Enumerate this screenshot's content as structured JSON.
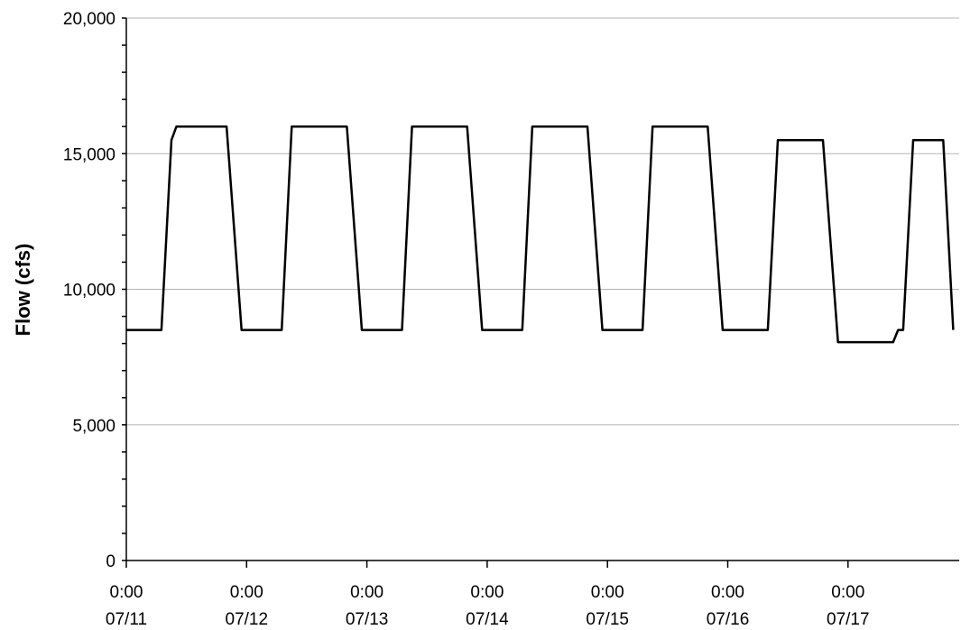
{
  "chart_data": {
    "type": "line",
    "ylabel": "Flow (cfs)",
    "xlabel": "",
    "title": "",
    "ylim": [
      0,
      20000
    ],
    "y_ticks": [
      0,
      5000,
      10000,
      15000,
      20000
    ],
    "y_tick_labels": [
      "0",
      "5,000",
      "10,000",
      "15,000",
      "20,000"
    ],
    "y_minor_step": 1000,
    "grid": "horizontal major",
    "xlim": [
      "07/11 0:00",
      "07/17 21:00"
    ],
    "x_ticks": [
      {
        "x": "07/11 0:00",
        "line1": "0:00",
        "line2": "07/11"
      },
      {
        "x": "07/12 0:00",
        "line1": "0:00",
        "line2": "07/12"
      },
      {
        "x": "07/13 0:00",
        "line1": "0:00",
        "line2": "07/13"
      },
      {
        "x": "07/14 0:00",
        "line1": "0:00",
        "line2": "07/14"
      },
      {
        "x": "07/15 0:00",
        "line1": "0:00",
        "line2": "07/15"
      },
      {
        "x": "07/16 0:00",
        "line1": "0:00",
        "line2": "07/16"
      },
      {
        "x": "07/17 0:00",
        "line1": "0:00",
        "line2": "07/17"
      }
    ],
    "series": [
      {
        "color": "#000000",
        "points": [
          [
            "07/11 0:00",
            8500
          ],
          [
            "07/11 7:00",
            8500
          ],
          [
            "07/11 9:00",
            15500
          ],
          [
            "07/11 10:00",
            16000
          ],
          [
            "07/11 20:00",
            16000
          ],
          [
            "07/11 23:00",
            8500
          ],
          [
            "07/12 7:00",
            8500
          ],
          [
            "07/12 9:00",
            16000
          ],
          [
            "07/12 20:00",
            16000
          ],
          [
            "07/12 23:00",
            8500
          ],
          [
            "07/13 7:00",
            8500
          ],
          [
            "07/13 9:00",
            16000
          ],
          [
            "07/13 20:00",
            16000
          ],
          [
            "07/13 23:00",
            8500
          ],
          [
            "07/14 7:00",
            8500
          ],
          [
            "07/14 9:00",
            16000
          ],
          [
            "07/14 20:00",
            16000
          ],
          [
            "07/14 23:00",
            8500
          ],
          [
            "07/15 7:00",
            8500
          ],
          [
            "07/15 9:00",
            16000
          ],
          [
            "07/15 20:00",
            16000
          ],
          [
            "07/15 23:00",
            8500
          ],
          [
            "07/16 8:00",
            8500
          ],
          [
            "07/16 10:00",
            15500
          ],
          [
            "07/16 19:00",
            15500
          ],
          [
            "07/16 22:00",
            8050
          ],
          [
            "07/17 9:00",
            8050
          ],
          [
            "07/17 10:00",
            8500
          ],
          [
            "07/17 11:00",
            8500
          ],
          [
            "07/17 13:00",
            15500
          ],
          [
            "07/17 19:00",
            15500
          ],
          [
            "07/17 21:00",
            8500
          ]
        ]
      }
    ]
  }
}
